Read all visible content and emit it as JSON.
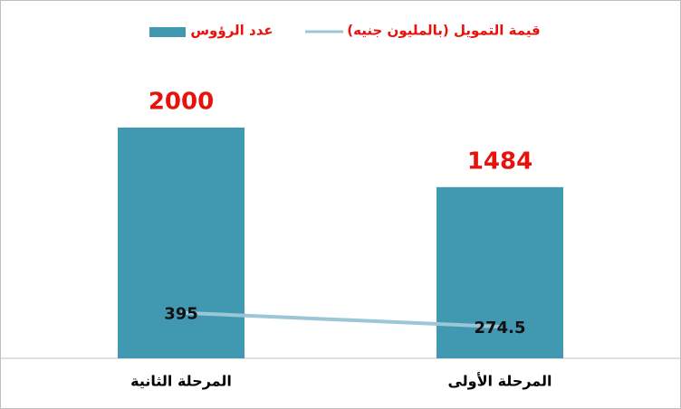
{
  "chart_data": {
    "type": "bar",
    "categories": [
      "المرحلة الثانية",
      "المرحلة الأولى"
    ],
    "series": [
      {
        "name": "عدد الرؤوس",
        "type": "bar",
        "color": "#4198b1",
        "label_color": "#e8120c",
        "values": [
          2000,
          1484
        ]
      },
      {
        "name": "قيمة التمويل (بالمليون جنيه)",
        "type": "line",
        "color": "#9cc5d6",
        "label_color": "#111111",
        "values": [
          395,
          274.5
        ]
      }
    ],
    "ylim": [
      0,
      2200
    ],
    "legend": "top"
  }
}
